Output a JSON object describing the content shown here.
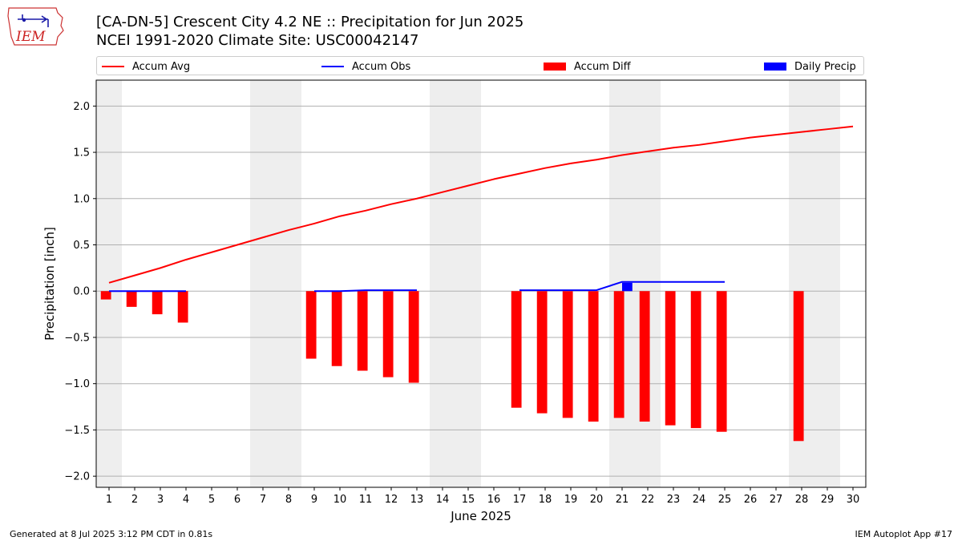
{
  "header": {
    "title_line1": "[CA-DN-5] Crescent City 4.2 NE :: Precipitation for Jun 2025",
    "title_line2": "NCEI 1991-2020 Climate Site: USC00042147",
    "logo_text": "IEM",
    "logo_icon": "iowa-state-outline-icon"
  },
  "legend": {
    "placement": "top",
    "items": [
      {
        "label": "Accum Avg",
        "kind": "line",
        "color": "#ff0000"
      },
      {
        "label": "Accum Obs",
        "kind": "line",
        "color": "#0000ff"
      },
      {
        "label": "Accum Diff",
        "kind": "bar",
        "color": "#ff0000"
      },
      {
        "label": "Daily Precip",
        "kind": "bar",
        "color": "#0000ff"
      }
    ]
  },
  "footer": {
    "left": "Generated at 8 Jul 2025 3:12 PM CDT in 0.81s",
    "right": "IEM Autoplot App #17"
  },
  "chart_data": {
    "type": "bar",
    "xlabel": "June 2025",
    "ylabel": "Precipitation [inch]",
    "xlim": [
      0.5,
      30.5
    ],
    "ylim": [
      -2.12,
      2.28
    ],
    "yticks": [
      2.0,
      1.5,
      1.0,
      0.5,
      0.0,
      -0.5,
      -1.0,
      -1.5,
      -2.0
    ],
    "ytick_labels": [
      "2.0",
      "1.5",
      "1.0",
      "0.5",
      "0.0",
      "−0.5",
      "−1.0",
      "−1.5",
      "−2.0"
    ],
    "x": [
      1,
      2,
      3,
      4,
      5,
      6,
      7,
      8,
      9,
      10,
      11,
      12,
      13,
      14,
      15,
      16,
      17,
      18,
      19,
      20,
      21,
      22,
      23,
      24,
      25,
      26,
      27,
      28,
      29,
      30
    ],
    "grid": "horizontal",
    "weekend_bands": [
      [
        0.5,
        1.5
      ],
      [
        6.5,
        8.5
      ],
      [
        13.5,
        15.5
      ],
      [
        20.5,
        22.5
      ],
      [
        27.5,
        29.5
      ]
    ],
    "band_color": "#eeeeee",
    "series": [
      {
        "name": "Accum Avg",
        "kind": "line",
        "color": "#ff0000",
        "x": [
          1,
          2,
          3,
          4,
          5,
          6,
          7,
          8,
          9,
          10,
          11,
          12,
          13,
          14,
          15,
          16,
          17,
          18,
          19,
          20,
          21,
          22,
          23,
          24,
          25,
          26,
          27,
          28,
          29,
          30
        ],
        "values": [
          0.09,
          0.17,
          0.25,
          0.34,
          0.42,
          0.5,
          0.58,
          0.66,
          0.73,
          0.81,
          0.87,
          0.94,
          1.0,
          1.07,
          1.14,
          1.21,
          1.27,
          1.33,
          1.38,
          1.42,
          1.47,
          1.51,
          1.55,
          1.58,
          1.62,
          1.66,
          1.69,
          1.72,
          1.75,
          1.78
        ]
      },
      {
        "name": "Accum Obs",
        "kind": "line",
        "color": "#0000ff",
        "segments": [
          {
            "x": [
              1,
              2,
              3,
              4
            ],
            "values": [
              0.0,
              0.0,
              0.0,
              0.0
            ]
          },
          {
            "x": [
              9,
              10,
              11,
              12,
              13
            ],
            "values": [
              0.0,
              0.0,
              0.01,
              0.01,
              0.01
            ]
          },
          {
            "x": [
              17,
              18,
              19,
              20,
              21,
              22,
              23,
              24,
              25
            ],
            "values": [
              0.01,
              0.01,
              0.01,
              0.01,
              0.1,
              0.1,
              0.1,
              0.1,
              0.1
            ]
          }
        ]
      },
      {
        "name": "Accum Diff",
        "kind": "bar",
        "color": "#ff0000",
        "x": [
          1,
          2,
          3,
          4,
          9,
          10,
          11,
          12,
          13,
          17,
          18,
          19,
          20,
          21,
          22,
          23,
          24,
          25,
          28
        ],
        "values": [
          -0.09,
          -0.17,
          -0.25,
          -0.34,
          -0.73,
          -0.81,
          -0.86,
          -0.93,
          -0.99,
          -1.26,
          -1.32,
          -1.37,
          -1.41,
          -1.37,
          -1.41,
          -1.45,
          -1.48,
          -1.52,
          -1.62
        ]
      },
      {
        "name": "Daily Precip",
        "kind": "bar",
        "color": "#0000ff",
        "x": [
          21
        ],
        "values": [
          0.09
        ]
      }
    ]
  }
}
